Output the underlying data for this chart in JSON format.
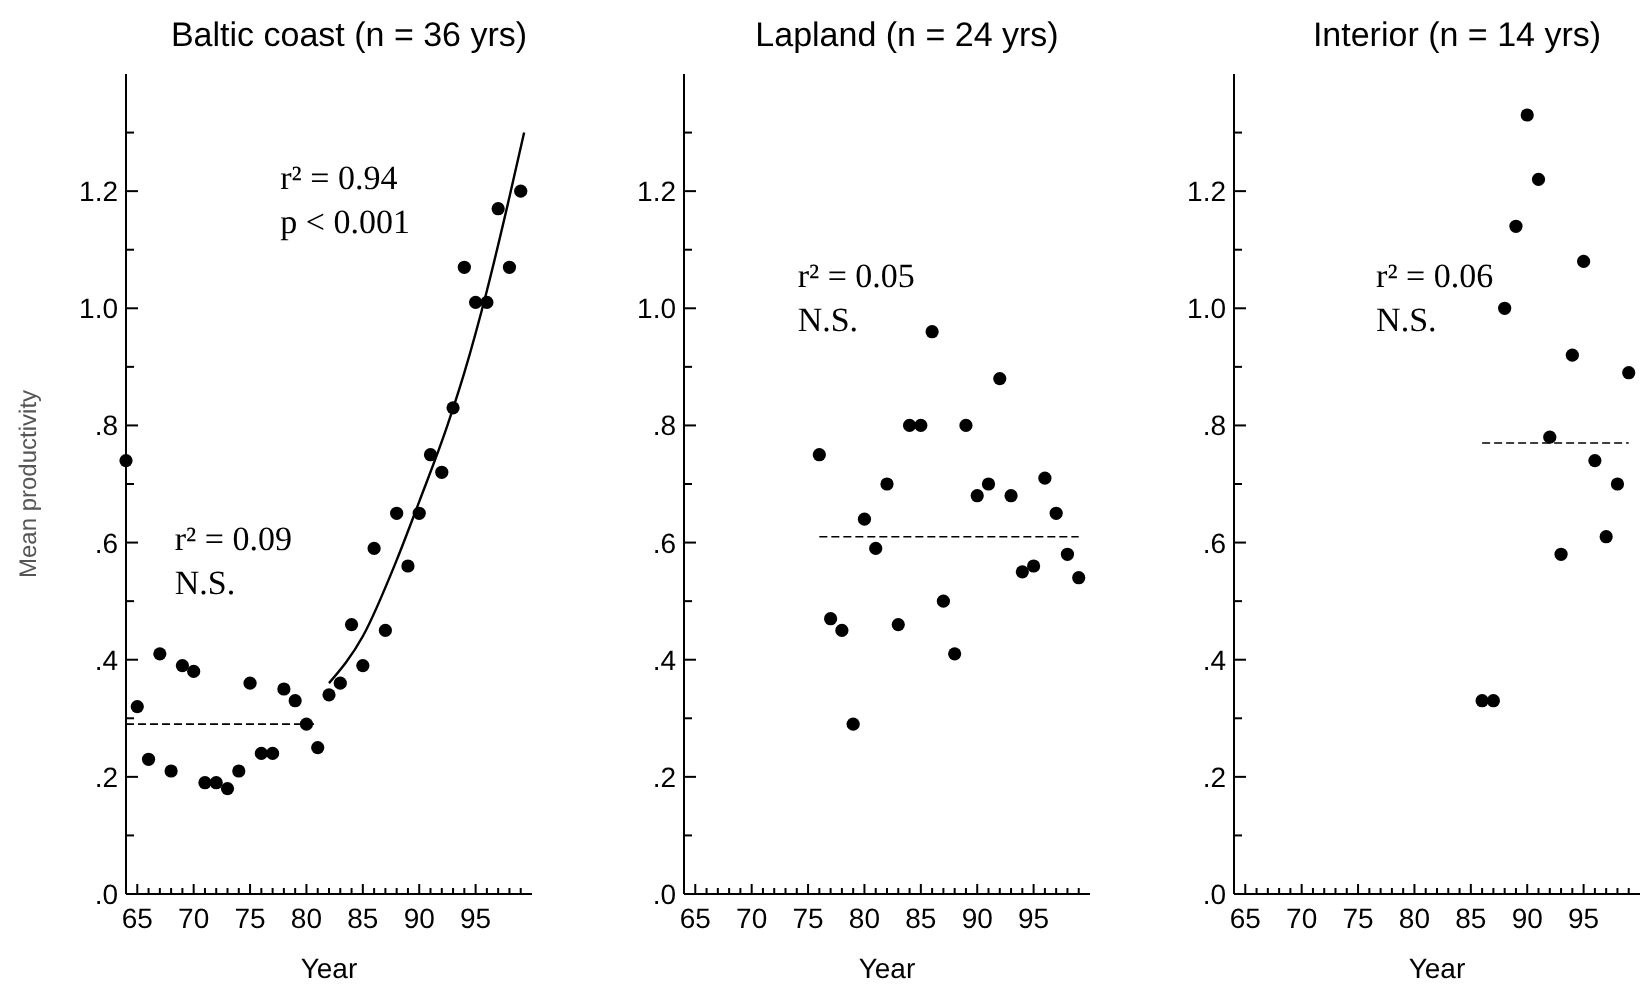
{
  "chart_data": [
    {
      "type": "scatter",
      "title": "Baltic coast (n = 36 yrs)",
      "xlabel": "Year",
      "ylabel": "Mean productivity",
      "marker": "circle",
      "xlim": [
        64,
        100
      ],
      "ylim": [
        0,
        1.4
      ],
      "xticks": [
        {
          "value": 64,
          "label": null
        },
        65,
        {
          "value": 66,
          "label": null
        },
        {
          "value": 67,
          "label": null
        },
        {
          "value": 68,
          "label": null
        },
        {
          "value": 69,
          "label": null
        },
        70,
        {
          "value": 71,
          "label": null
        },
        {
          "value": 72,
          "label": null
        },
        {
          "value": 73,
          "label": null
        },
        {
          "value": 74,
          "label": null
        },
        75,
        {
          "value": 76,
          "label": null
        },
        {
          "value": 77,
          "label": null
        },
        {
          "value": 78,
          "label": null
        },
        {
          "value": 79,
          "label": null
        },
        80,
        {
          "value": 81,
          "label": null
        },
        {
          "value": 82,
          "label": null
        },
        {
          "value": 83,
          "label": null
        },
        {
          "value": 84,
          "label": null
        },
        85,
        {
          "value": 86,
          "label": null
        },
        {
          "value": 87,
          "label": null
        },
        {
          "value": 88,
          "label": null
        },
        {
          "value": 89,
          "label": null
        },
        90,
        {
          "value": 91,
          "label": null
        },
        {
          "value": 92,
          "label": null
        },
        {
          "value": 93,
          "label": null
        },
        {
          "value": 94,
          "label": null
        },
        95,
        {
          "value": 96,
          "label": null
        },
        {
          "value": 97,
          "label": null
        },
        {
          "value": 98,
          "label": null
        },
        {
          "value": 99,
          "label": null
        }
      ],
      "yticks": [
        {
          "value": 0,
          "label": ".0"
        },
        {
          "value": 0.1,
          "label": null
        },
        {
          "value": 0.2,
          "label": ".2"
        },
        {
          "value": 0.3,
          "label": null
        },
        {
          "value": 0.4,
          "label": ".4"
        },
        {
          "value": 0.5,
          "label": null
        },
        {
          "value": 0.6,
          "label": ".6"
        },
        {
          "value": 0.7,
          "label": null
        },
        {
          "value": 0.8,
          "label": ".8"
        },
        {
          "value": 0.9,
          "label": null
        },
        {
          "value": 1,
          "label": "1.0"
        },
        {
          "value": 1.1,
          "label": null
        },
        {
          "value": 1.2,
          "label": "1.2"
        },
        {
          "value": 1.3,
          "label": null
        }
      ],
      "annotations": [
        "r² = 0.94",
        "p < 0.001",
        "r² = 0.09",
        "N.S."
      ],
      "series": [
        {
          "color": "#000000",
          "x": [
            64,
            65,
            66,
            67,
            68,
            69,
            70,
            71,
            72,
            73,
            74,
            75,
            76,
            77,
            78,
            79,
            80,
            81,
            82,
            83,
            84,
            85,
            86,
            87,
            88,
            89,
            90,
            91,
            92,
            93,
            94,
            95,
            96,
            97,
            98,
            99
          ],
          "values": [
            0.74,
            0.32,
            0.23,
            0.41,
            0.21,
            0.39,
            0.38,
            0.19,
            0.19,
            0.18,
            0.21,
            0.36,
            0.24,
            0.24,
            0.35,
            0.33,
            0.29,
            0.25,
            0.34,
            0.36,
            0.46,
            0.39,
            0.59,
            0.45,
            0.65,
            0.56,
            0.65,
            0.75,
            0.72,
            0.83,
            1.07,
            1.01,
            1.01,
            1.17,
            1.07,
            1.2
          ]
        },
        {
          "type": "line",
          "color": "#000000",
          "line_style": "solid",
          "marker": "none",
          "x": [
            82,
            85,
            88,
            90,
            92.5,
            94,
            96,
            98,
            99.3
          ],
          "values": [
            0.36,
            0.44,
            0.57,
            0.67,
            0.8,
            0.89,
            1.03,
            1.19,
            1.3
          ]
        },
        {
          "type": "line",
          "color": "#000000",
          "line_style": "dashed",
          "marker": "none",
          "x": [
            64,
            81
          ],
          "values": [
            0.29,
            0.29
          ]
        }
      ]
    },
    {
      "type": "scatter",
      "title": "Lapland (n = 24 yrs)",
      "xlabel": "Year",
      "marker": "circle",
      "xlim": [
        64,
        100
      ],
      "ylim": [
        0,
        1.4
      ],
      "xticks": [
        {
          "value": 64,
          "label": null
        },
        65,
        {
          "value": 66,
          "label": null
        },
        {
          "value": 67,
          "label": null
        },
        {
          "value": 68,
          "label": null
        },
        {
          "value": 69,
          "label": null
        },
        70,
        {
          "value": 71,
          "label": null
        },
        {
          "value": 72,
          "label": null
        },
        {
          "value": 73,
          "label": null
        },
        {
          "value": 74,
          "label": null
        },
        75,
        {
          "value": 76,
          "label": null
        },
        {
          "value": 77,
          "label": null
        },
        {
          "value": 78,
          "label": null
        },
        {
          "value": 79,
          "label": null
        },
        80,
        {
          "value": 81,
          "label": null
        },
        {
          "value": 82,
          "label": null
        },
        {
          "value": 83,
          "label": null
        },
        {
          "value": 84,
          "label": null
        },
        85,
        {
          "value": 86,
          "label": null
        },
        {
          "value": 87,
          "label": null
        },
        {
          "value": 88,
          "label": null
        },
        {
          "value": 89,
          "label": null
        },
        90,
        {
          "value": 91,
          "label": null
        },
        {
          "value": 92,
          "label": null
        },
        {
          "value": 93,
          "label": null
        },
        {
          "value": 94,
          "label": null
        },
        95,
        {
          "value": 96,
          "label": null
        },
        {
          "value": 97,
          "label": null
        },
        {
          "value": 98,
          "label": null
        },
        {
          "value": 99,
          "label": null
        }
      ],
      "yticks": [
        {
          "value": 0,
          "label": ".0"
        },
        {
          "value": 0.1,
          "label": null
        },
        {
          "value": 0.2,
          "label": ".2"
        },
        {
          "value": 0.3,
          "label": null
        },
        {
          "value": 0.4,
          "label": ".4"
        },
        {
          "value": 0.5,
          "label": null
        },
        {
          "value": 0.6,
          "label": ".6"
        },
        {
          "value": 0.7,
          "label": null
        },
        {
          "value": 0.8,
          "label": ".8"
        },
        {
          "value": 0.9,
          "label": null
        },
        {
          "value": 1,
          "label": "1.0"
        },
        {
          "value": 1.1,
          "label": null
        },
        {
          "value": 1.2,
          "label": "1.2"
        },
        {
          "value": 1.3,
          "label": null
        }
      ],
      "annotations": [
        "r² = 0.05",
        "N.S."
      ],
      "series": [
        {
          "color": "#000000",
          "x": [
            76,
            77,
            78,
            79,
            80,
            81,
            82,
            83,
            84,
            85,
            86,
            87,
            88,
            89,
            90,
            91,
            92,
            93,
            94,
            95,
            96,
            97,
            98,
            99
          ],
          "values": [
            0.75,
            0.47,
            0.45,
            0.29,
            0.64,
            0.59,
            0.7,
            0.46,
            0.8,
            0.8,
            0.96,
            0.5,
            0.41,
            0.8,
            0.68,
            0.7,
            0.88,
            0.68,
            0.55,
            0.56,
            0.71,
            0.65,
            0.58,
            0.54
          ]
        },
        {
          "type": "line",
          "color": "#000000",
          "line_style": "dashed",
          "marker": "none",
          "x": [
            76,
            99
          ],
          "values": [
            0.61,
            0.61
          ]
        }
      ]
    },
    {
      "type": "scatter",
      "title": "Interior (n = 14 yrs)",
      "xlabel": "Year",
      "marker": "circle",
      "xlim": [
        64,
        100
      ],
      "ylim": [
        0,
        1.4
      ],
      "xticks": [
        {
          "value": 64,
          "label": null
        },
        65,
        {
          "value": 66,
          "label": null
        },
        {
          "value": 67,
          "label": null
        },
        {
          "value": 68,
          "label": null
        },
        {
          "value": 69,
          "label": null
        },
        70,
        {
          "value": 71,
          "label": null
        },
        {
          "value": 72,
          "label": null
        },
        {
          "value": 73,
          "label": null
        },
        {
          "value": 74,
          "label": null
        },
        75,
        {
          "value": 76,
          "label": null
        },
        {
          "value": 77,
          "label": null
        },
        {
          "value": 78,
          "label": null
        },
        {
          "value": 79,
          "label": null
        },
        80,
        {
          "value": 81,
          "label": null
        },
        {
          "value": 82,
          "label": null
        },
        {
          "value": 83,
          "label": null
        },
        {
          "value": 84,
          "label": null
        },
        85,
        {
          "value": 86,
          "label": null
        },
        {
          "value": 87,
          "label": null
        },
        {
          "value": 88,
          "label": null
        },
        {
          "value": 89,
          "label": null
        },
        90,
        {
          "value": 91,
          "label": null
        },
        {
          "value": 92,
          "label": null
        },
        {
          "value": 93,
          "label": null
        },
        {
          "value": 94,
          "label": null
        },
        95,
        {
          "value": 96,
          "label": null
        },
        {
          "value": 97,
          "label": null
        },
        {
          "value": 98,
          "label": null
        },
        {
          "value": 99,
          "label": null
        }
      ],
      "yticks": [
        {
          "value": 0,
          "label": ".0"
        },
        {
          "value": 0.1,
          "label": null
        },
        {
          "value": 0.2,
          "label": ".2"
        },
        {
          "value": 0.3,
          "label": null
        },
        {
          "value": 0.4,
          "label": ".4"
        },
        {
          "value": 0.5,
          "label": null
        },
        {
          "value": 0.6,
          "label": ".6"
        },
        {
          "value": 0.7,
          "label": null
        },
        {
          "value": 0.8,
          "label": ".8"
        },
        {
          "value": 0.9,
          "label": null
        },
        {
          "value": 1,
          "label": "1.0"
        },
        {
          "value": 1.1,
          "label": null
        },
        {
          "value": 1.2,
          "label": "1.2"
        },
        {
          "value": 1.3,
          "label": null
        }
      ],
      "annotations": [
        "r² = 0.06",
        "N.S."
      ],
      "series": [
        {
          "color": "#000000",
          "x": [
            86,
            87,
            88,
            89,
            90,
            91,
            92,
            93,
            94,
            95,
            96,
            97,
            98,
            99
          ],
          "values": [
            0.33,
            0.33,
            1.0,
            1.14,
            1.33,
            1.22,
            0.78,
            0.58,
            0.92,
            1.08,
            0.74,
            0.61,
            0.7,
            0.89
          ]
        },
        {
          "type": "line",
          "color": "#000000",
          "line_style": "dashed",
          "marker": "none",
          "x": [
            86,
            99
          ],
          "values": [
            0.77,
            0.77
          ]
        }
      ]
    }
  ]
}
